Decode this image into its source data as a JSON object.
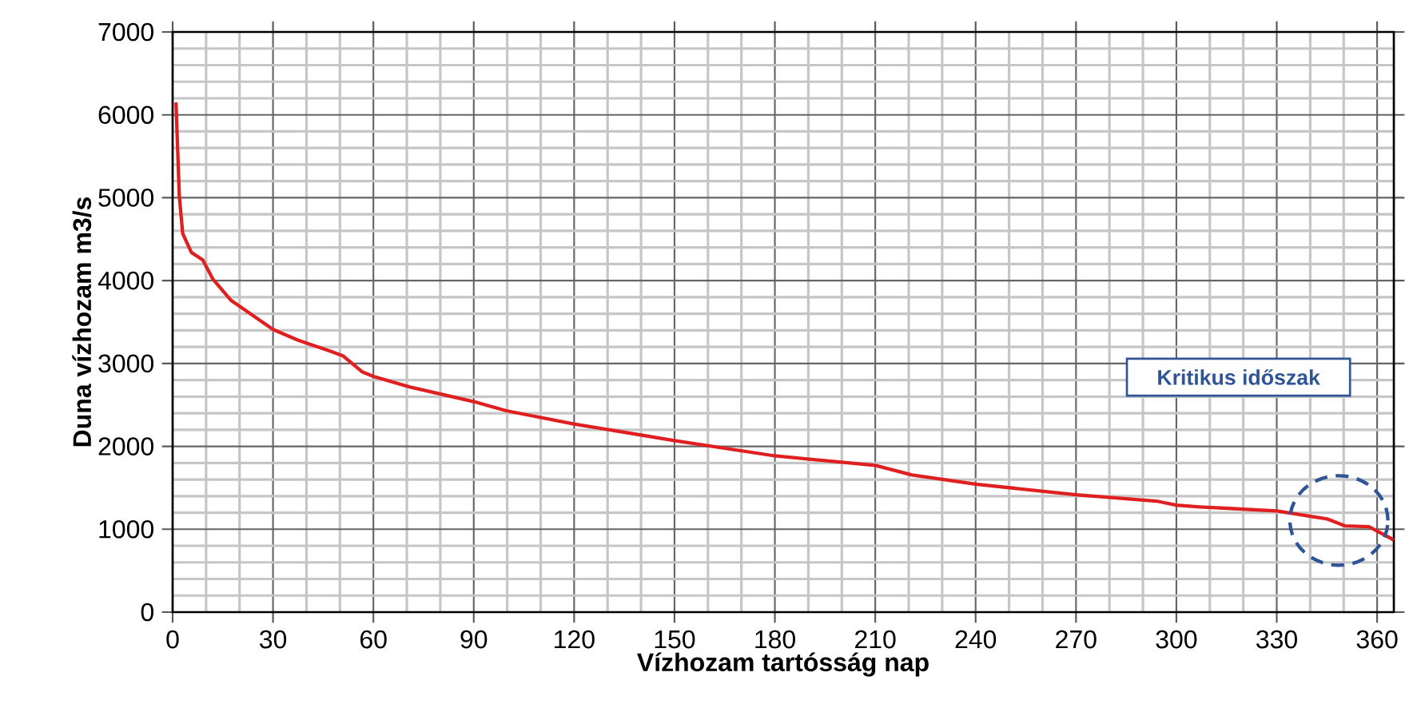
{
  "chart_data": {
    "type": "line",
    "xlabel": "Vízhozam tartósság nap",
    "ylabel": "Duna vízhozam m3/s",
    "annotations": [
      "Kritikus időszak"
    ],
    "x": [
      1,
      2,
      3,
      5.6,
      9,
      12,
      17.5,
      30,
      37.5,
      47,
      51,
      56.6,
      60,
      71,
      90,
      99.7,
      120,
      150,
      180,
      210,
      221,
      240,
      270,
      294,
      300,
      307,
      330,
      345,
      350.5,
      357.6,
      365
    ],
    "series": [
      {
        "color": "#e02020",
        "values": [
          6150,
          5020,
          4570,
          4340,
          4250,
          4020,
          3760,
          3410,
          3280,
          3150,
          3090,
          2900,
          2845,
          2715,
          2540,
          2430,
          2270,
          2070,
          1885,
          1770,
          1655,
          1545,
          1415,
          1340,
          1290,
          1270,
          1220,
          1125,
          1040,
          1030,
          870
        ]
      }
    ],
    "xlim": [
      0,
      365
    ],
    "xticks": [
      0,
      30,
      60,
      90,
      120,
      150,
      180,
      210,
      240,
      270,
      300,
      330,
      360
    ],
    "ylim": [
      0,
      7000
    ],
    "yticks": [
      0,
      1000,
      2000,
      3000,
      4000,
      5000,
      6000,
      7000
    ],
    "grid": true
  }
}
